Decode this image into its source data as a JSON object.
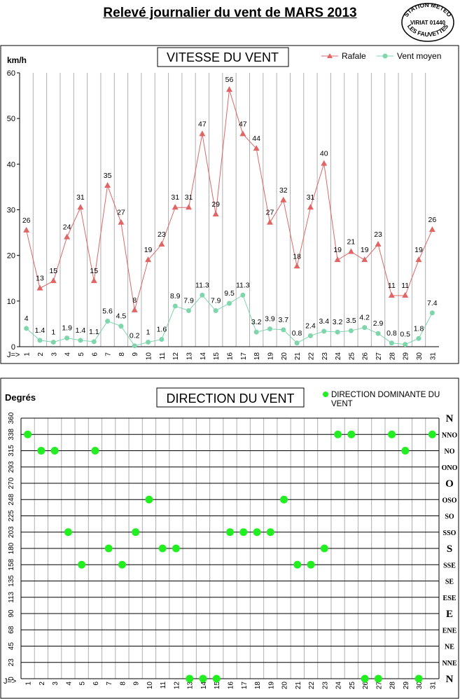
{
  "page_title": "Relevé journalier du vent de MARS 2013",
  "stamp": {
    "line1": "STATION METEO",
    "line2": "VIRIAT 01440",
    "line3": "LES FAUVETTES"
  },
  "colors": {
    "rafale": "#e06666",
    "rafale_marker": "#e06666",
    "moyen": "#7fd6ac",
    "dot": "#22ee22",
    "frame": "#000000"
  },
  "chart_data": [
    {
      "type": "line",
      "title": "VITESSE DU VENT",
      "ylabel": "km/h",
      "xlabel": "J=>",
      "ylim": [
        0,
        60
      ],
      "yticks": [
        "0",
        "10",
        "20",
        "30",
        "40",
        "50",
        "60"
      ],
      "categories": [
        "1",
        "2",
        "3",
        "4",
        "5",
        "6",
        "7",
        "8",
        "9",
        "10",
        "11",
        "12",
        "13",
        "14",
        "15",
        "16",
        "17",
        "18",
        "19",
        "20",
        "21",
        "22",
        "23",
        "24",
        "25",
        "26",
        "27",
        "28",
        "29",
        "30",
        "31"
      ],
      "legend_position": "top-right",
      "series": [
        {
          "name": "Rafale",
          "values": [
            26,
            13,
            15,
            24,
            31,
            15,
            35,
            27,
            8,
            19,
            23,
            31,
            31,
            47,
            29,
            56,
            47,
            44,
            27,
            32,
            18,
            31,
            40,
            19,
            21,
            19,
            23,
            11,
            11,
            19,
            26
          ],
          "plot_values": [
            25.5,
            12.8,
            14.4,
            24,
            30.5,
            14.4,
            35.3,
            27.2,
            8,
            19,
            22.4,
            30.5,
            30.5,
            46.6,
            29,
            56.3,
            46.6,
            43.4,
            27.2,
            32.1,
            17.6,
            30.5,
            40.1,
            19,
            20.8,
            19,
            22.4,
            11.2,
            11.2,
            19,
            25.6
          ],
          "labels": [
            "26",
            "13",
            "15",
            "24",
            "31",
            "15",
            "35",
            "27",
            "8",
            "19",
            "23",
            "31",
            "31",
            "47",
            "29",
            "56",
            "47",
            "44",
            "27",
            "32",
            "18",
            "31",
            "40",
            "19",
            "21",
            "19",
            "23",
            "11",
            "11",
            "19",
            "26"
          ]
        },
        {
          "name": "Vent moyen",
          "values": [
            4,
            1.4,
            1,
            1.9,
            1.4,
            1.1,
            5.6,
            4.5,
            0.2,
            1,
            1.6,
            8.9,
            7.9,
            11.3,
            7.9,
            9.5,
            11.3,
            3.2,
            3.9,
            3.7,
            0.8,
            2.4,
            3.4,
            3.2,
            3.5,
            4.2,
            2.9,
            0.8,
            0.5,
            1.8,
            7.4
          ],
          "labels": [
            "4",
            "1.4",
            "1",
            "1.9",
            "1.4",
            "1.1",
            "5.6",
            "4.5",
            "0.2",
            "1",
            "1.6",
            "8.9",
            "7.9",
            "11.3",
            "7.9",
            "9.5",
            "11.3",
            "3.2",
            "3.9",
            "3.7",
            "0.8",
            "2.4",
            "3.4",
            "3.2",
            "3.5",
            "4.2",
            "2.9",
            "0.8",
            "0.5",
            "1.8",
            "7.4"
          ]
        }
      ]
    },
    {
      "type": "scatter",
      "title": "DIRECTION DU VENT",
      "ylabel": "Degrés",
      "xlabel": "J=>",
      "ylim": [
        0,
        360
      ],
      "yticks": [
        "0",
        "23",
        "45",
        "68",
        "90",
        "113",
        "135",
        "158",
        "180",
        "203",
        "225",
        "248",
        "270",
        "293",
        "315",
        "338",
        "360"
      ],
      "ytick_values": [
        0,
        22.5,
        45,
        67.5,
        90,
        112.5,
        135,
        157.5,
        180,
        202.5,
        225,
        247.5,
        270,
        292.5,
        315,
        337.5,
        360
      ],
      "compass_labels": [
        "N",
        "NNE",
        "NE",
        "ENE",
        "E",
        "ESE",
        "SE",
        "SSE",
        "S",
        "SSO",
        "SO",
        "OSO",
        "O",
        "ONO",
        "NO",
        "NNO",
        "N"
      ],
      "categories": [
        "1",
        "2",
        "3",
        "4",
        "5",
        "6",
        "7",
        "8",
        "9",
        "10",
        "11",
        "12",
        "13",
        "14",
        "15",
        "16",
        "17",
        "18",
        "19",
        "20",
        "21",
        "22",
        "23",
        "24",
        "25",
        "26",
        "27",
        "28",
        "29",
        "30",
        "31"
      ],
      "legend_position": "top-right",
      "series": [
        {
          "name": "DIRECTION DOMINANTE DU VENT",
          "values": [
            337.5,
            315,
            315,
            202.5,
            157.5,
            315,
            180,
            157.5,
            202.5,
            247.5,
            180,
            180,
            0,
            0,
            0,
            202.5,
            202.5,
            202.5,
            202.5,
            247.5,
            157.5,
            157.5,
            180,
            337.5,
            337.5,
            0,
            0,
            337.5,
            315,
            0,
            337.5
          ]
        }
      ]
    }
  ]
}
